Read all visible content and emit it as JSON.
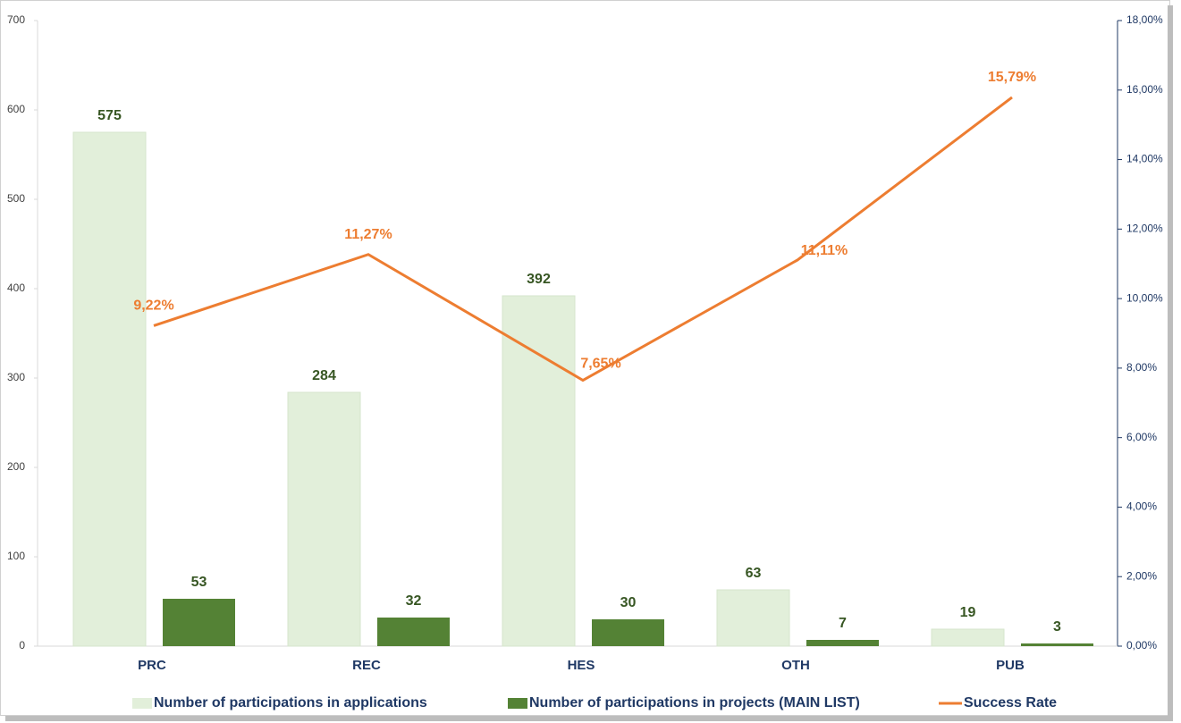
{
  "chart_data": {
    "type": "bar",
    "categories": [
      "PRC",
      "REC",
      "HES",
      "OTH",
      "PUB"
    ],
    "series": [
      {
        "name": "Number of participations in applications",
        "color": "#e2efda",
        "values": [
          575,
          284,
          392,
          63,
          19
        ]
      },
      {
        "name": "Number of participations in projects (MAIN LIST)",
        "color": "#548235",
        "values": [
          53,
          32,
          30,
          7,
          3
        ]
      },
      {
        "name": "Success Rate",
        "color": "#ed7d31",
        "type": "line",
        "axis": "y2",
        "values": [
          9.22,
          11.27,
          7.65,
          11.11,
          15.79
        ],
        "value_labels": [
          "9,22%",
          "11,27%",
          "7,65%",
          "11,11%",
          "15,79%"
        ]
      }
    ],
    "ylim": [
      0,
      700
    ],
    "yticks": [
      0,
      100,
      200,
      300,
      400,
      500,
      600,
      700
    ],
    "y2lim": [
      0,
      18
    ],
    "y2ticks": [
      {
        "value": 0,
        "label": "0,00%"
      },
      {
        "value": 2,
        "label": "2,00%"
      },
      {
        "value": 4,
        "label": "4,00%"
      },
      {
        "value": 6,
        "label": "6,00%"
      },
      {
        "value": 8,
        "label": "8,00%"
      },
      {
        "value": 10,
        "label": "10,00%"
      },
      {
        "value": 12,
        "label": "12,00%"
      },
      {
        "value": 14,
        "label": "14,00%"
      },
      {
        "value": 16,
        "label": "16,00%"
      },
      {
        "value": 18,
        "label": "18,00%"
      }
    ],
    "legend": "bottom"
  }
}
